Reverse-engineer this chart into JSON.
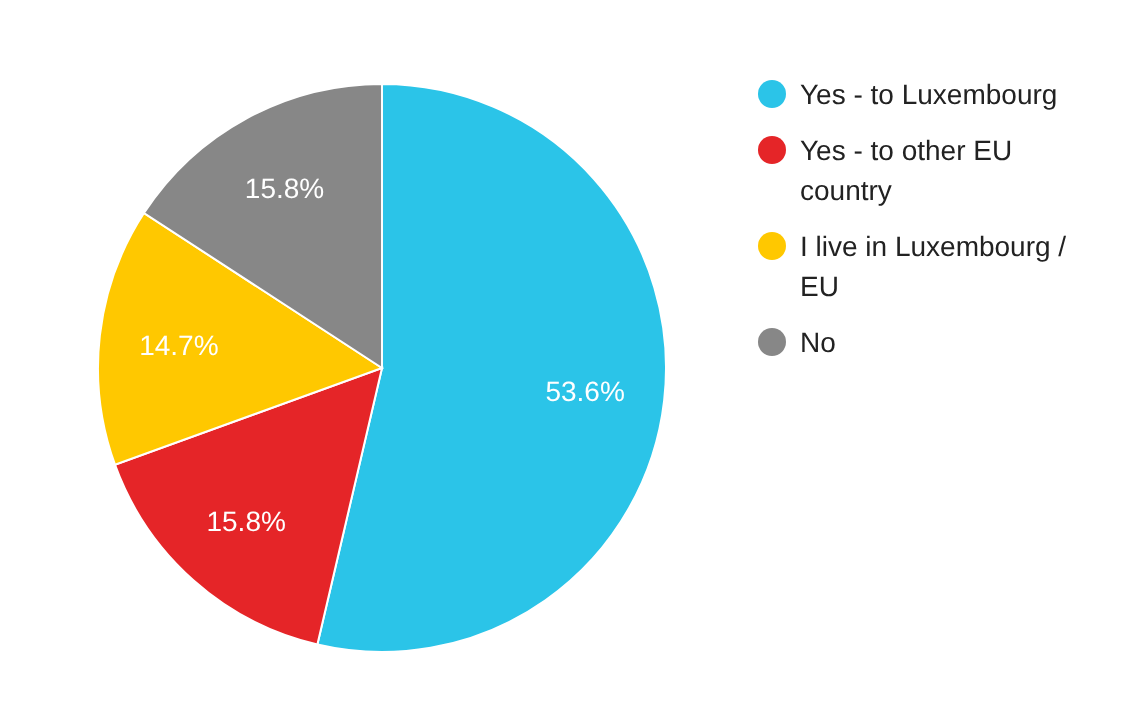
{
  "chart_data": {
    "type": "pie",
    "categories": [
      "Yes - to Luxembourg",
      "Yes - to other EU country",
      "I live in Luxembourg / EU",
      "No"
    ],
    "values": [
      53.6,
      15.8,
      14.7,
      15.8
    ],
    "colors": [
      "#2bc4e8",
      "#e52528",
      "#ffc800",
      "#878787"
    ],
    "value_labels": [
      "53.6%",
      "15.8%",
      "14.7%",
      "15.8%"
    ],
    "legend": "right"
  }
}
